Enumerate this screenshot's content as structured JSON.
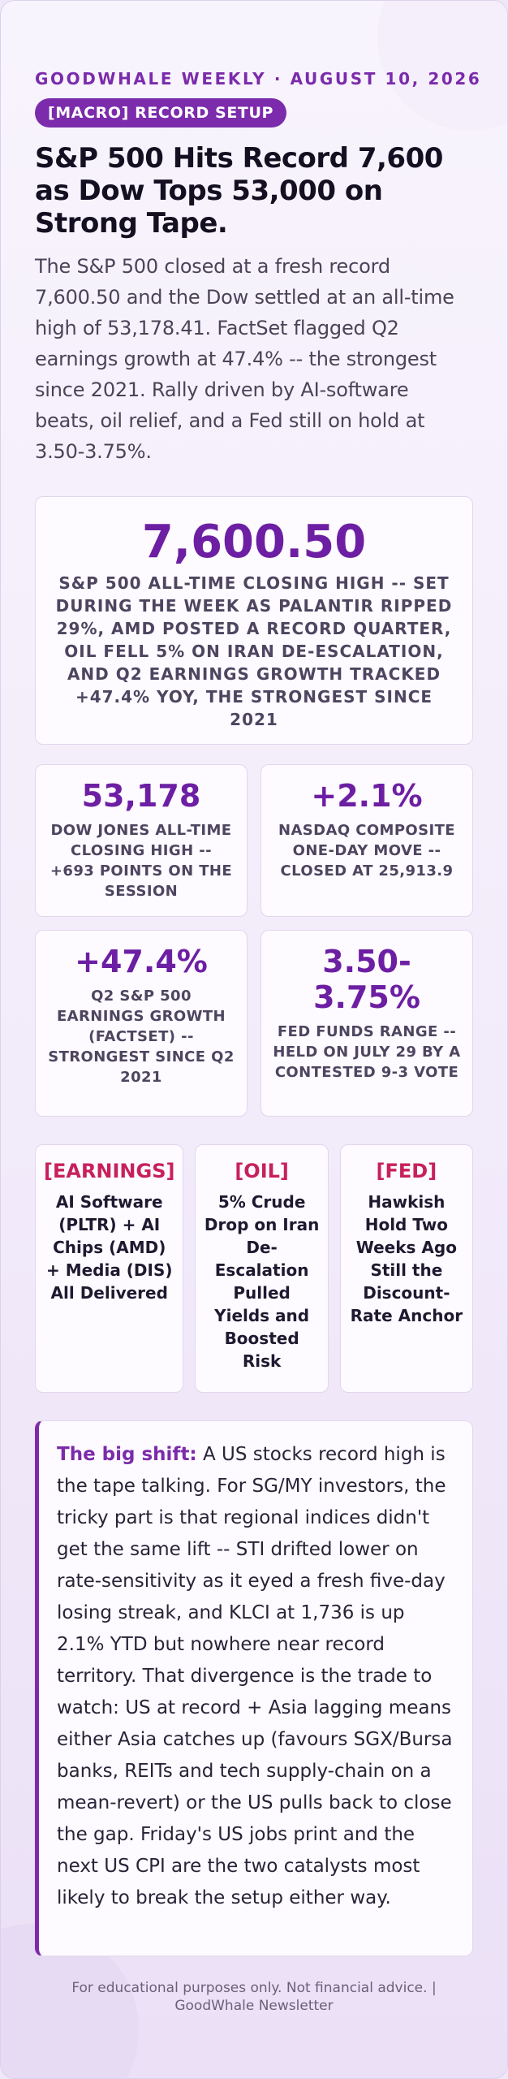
{
  "header": {
    "kicker": "GOODWHALE WEEKLY · AUGUST 10, 2026",
    "tag": "[MACRO] RECORD SETUP",
    "headline": "S&P 500 Hits Record 7,600 as Dow Tops 53,000 on Strong Tape.",
    "lede": "The S&P 500 closed at a fresh record 7,600.50 and the Dow settled at an all-time high of 53,178.41. FactSet flagged Q2 earnings growth at 47.4% -- the strongest since 2021. Rally driven by AI-software beats, oil relief, and a Fed still on hold at 3.50-3.75%."
  },
  "hero": {
    "value": "7,600.50",
    "label": "S&P 500 ALL-TIME CLOSING HIGH -- SET DURING THE WEEK AS PALANTIR RIPPED 29%, AMD POSTED A RECORD QUARTER, OIL FELL 5% ON IRAN DE-ESCALATION, AND Q2 EARNINGS GROWTH TRACKED +47.4% YOY, THE STRONGEST SINCE 2021"
  },
  "stats": [
    {
      "value": "53,178",
      "label": "DOW JONES ALL-TIME CLOSING HIGH -- +693 POINTS ON THE SESSION"
    },
    {
      "value": "+2.1%",
      "label": "NASDAQ COMPOSITE ONE-DAY MOVE -- CLOSED AT 25,913.9"
    },
    {
      "value": "+47.4%",
      "label": "Q2 S&P 500 EARNINGS GROWTH (FACTSET) -- STRONGEST SINCE Q2 2021"
    },
    {
      "value": "3.50-3.75%",
      "label": "FED FUNDS RANGE -- HELD ON JULY 29 BY A CONTESTED 9-3 VOTE"
    }
  ],
  "themes": [
    {
      "tag": "[EARNINGS]",
      "text": "AI Software (PLTR) + AI Chips (AMD) + Media (DIS) All Delivered"
    },
    {
      "tag": "[OIL]",
      "text": "5% Crude Drop on Iran De-Escalation Pulled Yields and Boosted Risk"
    },
    {
      "tag": "[FED]",
      "text": "Hawkish Hold Two Weeks Ago Still the Discount-Rate Anchor"
    }
  ],
  "shift": {
    "lead": "The big shift:",
    "body": " A US stocks record high is the tape talking. For SG/MY investors, the tricky part is that regional indices didn't get the same lift -- STI drifted lower on rate-sensitivity as it eyed a fresh five-day losing streak, and KLCI at 1,736 is up 2.1% YTD but nowhere near record territory. That divergence is the trade to watch: US at record + Asia lagging means either Asia catches up (favours SGX/Bursa banks, REITs and tech supply-chain on a mean-revert) or the US pulls back to close the gap. Friday's US jobs print and the next US CPI are the two catalysts most likely to break the setup either way."
  },
  "footer": {
    "text": "For educational purposes only. Not financial advice. | GoodWhale Newsletter"
  },
  "colors": {
    "accent": "#7b2bab",
    "value": "#6d1fa3",
    "theme_tag": "#c8205a"
  }
}
